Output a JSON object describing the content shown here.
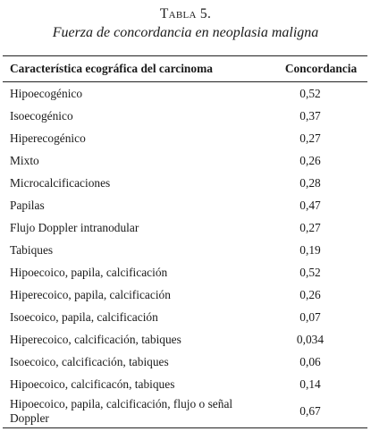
{
  "caption": {
    "label": "Tabla 5.",
    "title": "Fuerza de concordancia en neoplasia maligna"
  },
  "table": {
    "headers": [
      "Característica ecográfica del carcinoma",
      "Concordancia"
    ],
    "rows": [
      {
        "feature": "Hipoecogénico",
        "value": "0,52"
      },
      {
        "feature": "Isoecogénico",
        "value": "0,37"
      },
      {
        "feature": "Hiperecogénico",
        "value": "0,27"
      },
      {
        "feature": "Mixto",
        "value": "0,26"
      },
      {
        "feature": "Microcalcificaciones",
        "value": "0,28"
      },
      {
        "feature": "Papilas",
        "value": "0,47"
      },
      {
        "feature": "Flujo Doppler intranodular",
        "value": "0,27"
      },
      {
        "feature": "Tabiques",
        "value": "0,19"
      },
      {
        "feature": "Hipoecoico, papila, calcificación",
        "value": "0,52"
      },
      {
        "feature": "Hiperecoico, papila, calcificación",
        "value": "0,26"
      },
      {
        "feature": "Isoecoico, papila, calcificación",
        "value": "0,07"
      },
      {
        "feature": "Hiperecoico, calcificación, tabiques",
        "value": "0,034"
      },
      {
        "feature": "Isoecoico, calcificación, tabiques",
        "value": "0,06"
      },
      {
        "feature": "Hipoecoico, calcificacón, tabiques",
        "value": "0,14"
      },
      {
        "feature": "Hipoecoico, papila, calcificación, flujo o señal Doppler",
        "value": "0,67"
      }
    ]
  }
}
